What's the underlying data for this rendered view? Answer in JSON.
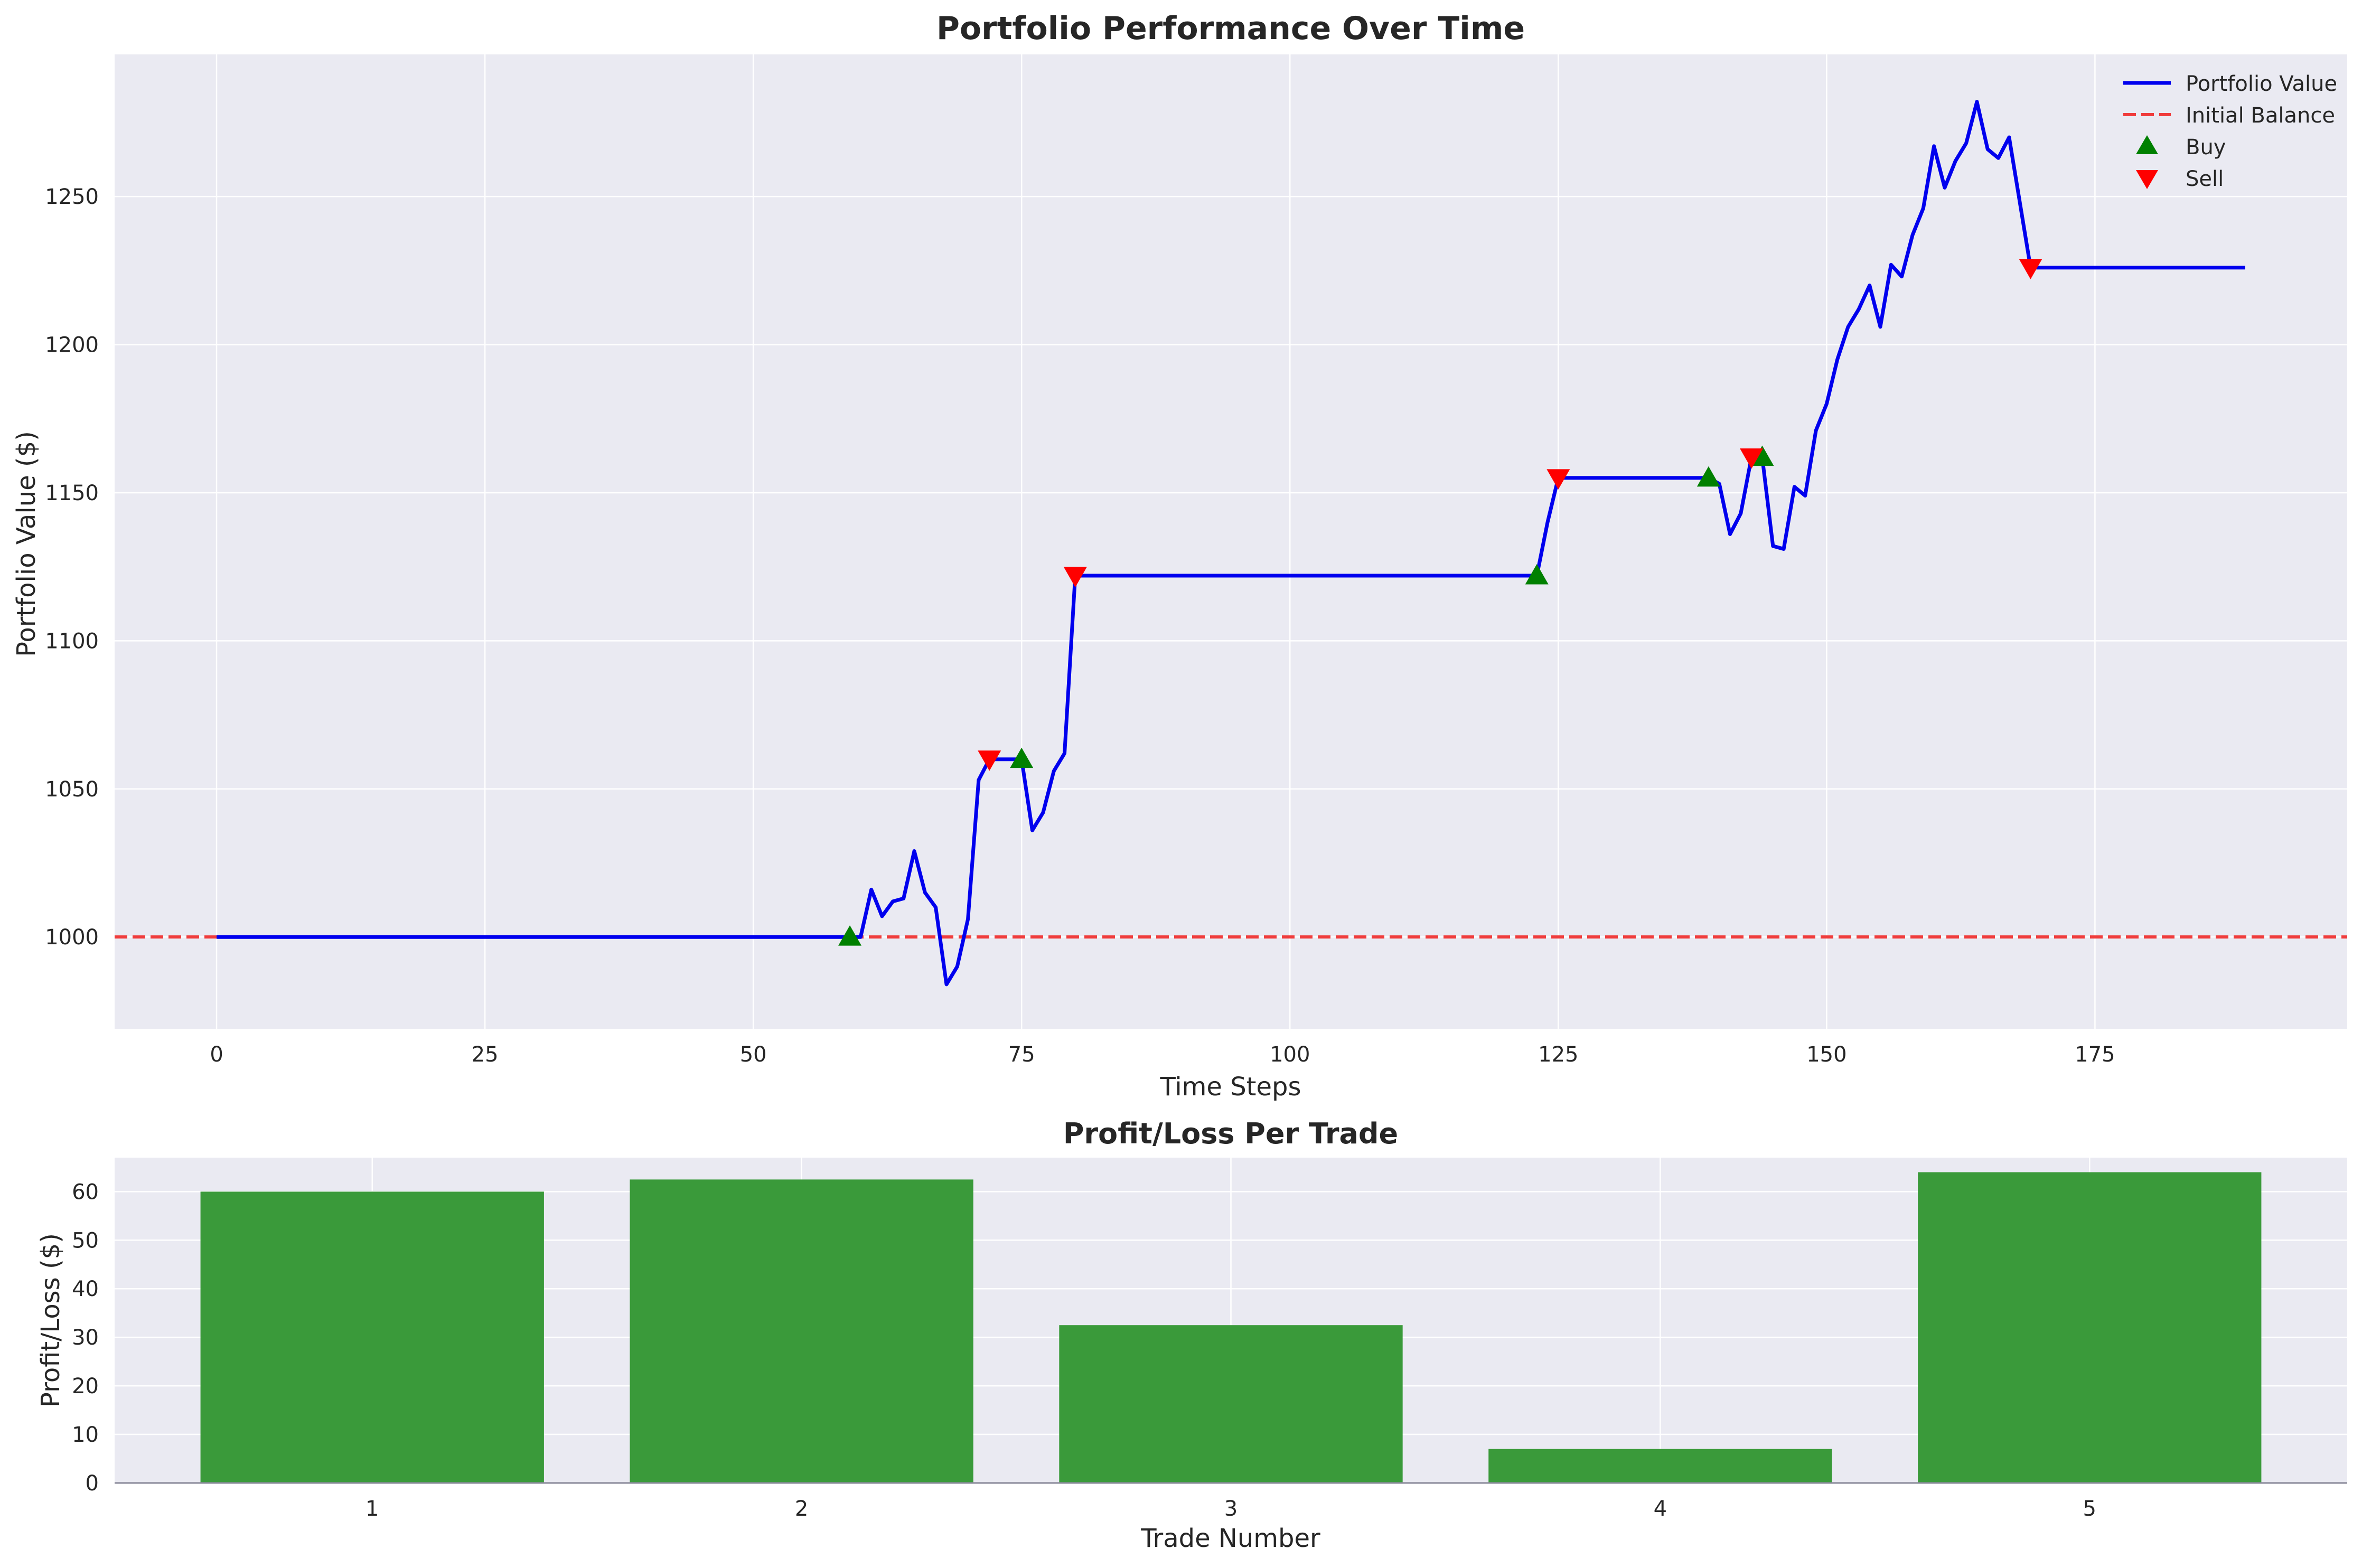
{
  "chart_data": [
    {
      "type": "line",
      "title": "Portfolio Performance Over Time",
      "xlabel": "Time Steps",
      "ylabel": "Portfolio Value ($)",
      "xlim": [
        -9.5,
        198.5
      ],
      "ylim": [
        969,
        1298
      ],
      "xticks": [
        0,
        25,
        50,
        75,
        100,
        125,
        150,
        175
      ],
      "yticks": [
        1000,
        1050,
        1100,
        1150,
        1200,
        1250
      ],
      "grid": true,
      "legend_position": "top-right",
      "legend": [
        "Portfolio Value",
        "Initial Balance",
        "Buy",
        "Sell"
      ],
      "colors": {
        "portfolio": "#0000ee",
        "initial": "#f03c3c",
        "buy": "#008000",
        "sell": "#ff0000",
        "bg": "#eaeaf2"
      },
      "series": [
        {
          "name": "Portfolio Value",
          "points": [
            [
              0,
              1000
            ],
            [
              59,
              1000
            ],
            [
              60,
              1000
            ],
            [
              61,
              1016
            ],
            [
              62,
              1007
            ],
            [
              63,
              1012
            ],
            [
              64,
              1013
            ],
            [
              65,
              1029
            ],
            [
              66,
              1015
            ],
            [
              67,
              1010
            ],
            [
              68,
              984
            ],
            [
              69,
              990
            ],
            [
              70,
              1006
            ],
            [
              71,
              1053
            ],
            [
              72,
              1060
            ],
            [
              75,
              1060
            ],
            [
              76,
              1036
            ],
            [
              77,
              1042
            ],
            [
              78,
              1056
            ],
            [
              79,
              1062
            ],
            [
              80,
              1122
            ],
            [
              123,
              1122
            ],
            [
              124,
              1140
            ],
            [
              125,
              1155
            ],
            [
              139,
              1155
            ],
            [
              140,
              1153
            ],
            [
              141,
              1136
            ],
            [
              142,
              1143
            ],
            [
              143,
              1162
            ],
            [
              144,
              1162
            ],
            [
              145,
              1132
            ],
            [
              146,
              1131
            ],
            [
              147,
              1152
            ],
            [
              148,
              1149
            ],
            [
              149,
              1171
            ],
            [
              150,
              1180
            ],
            [
              151,
              1195
            ],
            [
              152,
              1206
            ],
            [
              153,
              1212
            ],
            [
              154,
              1220
            ],
            [
              155,
              1206
            ],
            [
              156,
              1227
            ],
            [
              157,
              1223
            ],
            [
              158,
              1237
            ],
            [
              159,
              1246
            ],
            [
              160,
              1267
            ],
            [
              161,
              1253
            ],
            [
              162,
              1262
            ],
            [
              163,
              1268
            ],
            [
              164,
              1282
            ],
            [
              165,
              1266
            ],
            [
              166,
              1263
            ],
            [
              167,
              1270
            ],
            [
              168,
              1248
            ],
            [
              169,
              1226
            ],
            [
              189,
              1226
            ]
          ]
        },
        {
          "name": "Initial Balance",
          "value": 1000
        },
        {
          "name": "Buy",
          "points": [
            [
              59,
              1000
            ],
            [
              75,
              1060
            ],
            [
              123,
              1122
            ],
            [
              139,
              1155
            ],
            [
              144,
              1162
            ]
          ]
        },
        {
          "name": "Sell",
          "points": [
            [
              72,
              1060
            ],
            [
              80,
              1122
            ],
            [
              125,
              1155
            ],
            [
              143,
              1162
            ],
            [
              169,
              1226
            ]
          ]
        }
      ]
    },
    {
      "type": "bar",
      "title": "Profit/Loss Per Trade",
      "xlabel": "Trade Number",
      "ylabel": "Profit/Loss ($)",
      "categories": [
        "1",
        "2",
        "3",
        "4",
        "5"
      ],
      "values": [
        60,
        62.5,
        32.5,
        7,
        64
      ],
      "ylim": [
        0,
        67
      ],
      "yticks": [
        0,
        10,
        20,
        30,
        40,
        50,
        60
      ],
      "grid": true,
      "colors": {
        "bar": "#3a9a3a",
        "bg": "#eaeaf2"
      }
    }
  ]
}
